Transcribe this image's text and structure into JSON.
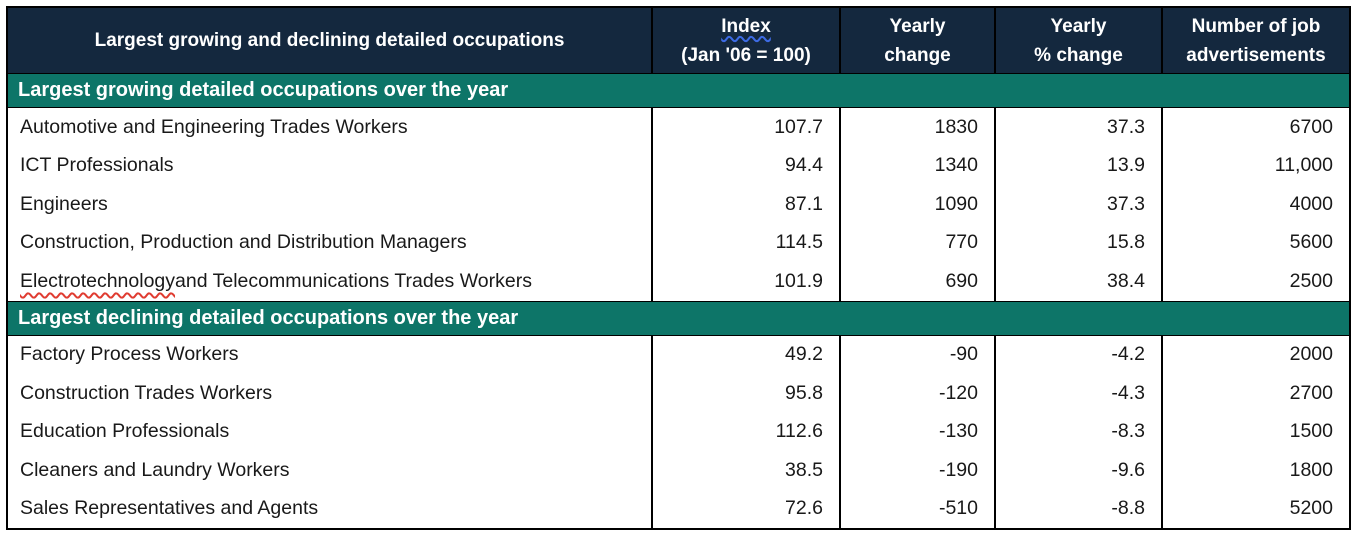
{
  "colors": {
    "header_bg": "#14283E",
    "section_bg": "#0D7568",
    "border": "#000000",
    "header_text": "#FFFFFF",
    "body_text": "#191919",
    "spellcheck_red": "#E03C31",
    "spellcheck_blue": "#3D6BE5"
  },
  "header": {
    "title": "Largest growing and declining detailed occupations",
    "columns": [
      {
        "line1": "Index",
        "line2": "(Jan '06 = 100)"
      },
      {
        "line1": "Yearly",
        "line2": "change"
      },
      {
        "line1": "Yearly",
        "line2": "% change"
      },
      {
        "line1": "Number of job",
        "line2": "advertisements"
      }
    ]
  },
  "sections": [
    {
      "label": "Largest growing detailed occupations over the year",
      "rows": [
        {
          "occupation": "Automotive and Engineering Trades Workers",
          "index": "107.7",
          "yearly_change": "1830",
          "yearly_pct_change": "37.3",
          "job_ads": "6700"
        },
        {
          "occupation": "ICT Professionals",
          "index": "94.4",
          "yearly_change": "1340",
          "yearly_pct_change": "13.9",
          "job_ads": "11,000"
        },
        {
          "occupation": "Engineers",
          "index": "87.1",
          "yearly_change": "1090",
          "yearly_pct_change": "37.3",
          "job_ads": "4000"
        },
        {
          "occupation": "Construction, Production and Distribution Managers",
          "index": "114.5",
          "yearly_change": "770",
          "yearly_pct_change": "15.8",
          "job_ads": "5600"
        },
        {
          "occupation_flagged": "Electrotechnology",
          "occupation_rest": " and Telecommunications Trades Workers",
          "index": "101.9",
          "yearly_change": "690",
          "yearly_pct_change": "38.4",
          "job_ads": "2500"
        }
      ]
    },
    {
      "label": "Largest declining detailed occupations over the year",
      "rows": [
        {
          "occupation": "Factory Process Workers",
          "index": "49.2",
          "yearly_change": "-90",
          "yearly_pct_change": "-4.2",
          "job_ads": "2000"
        },
        {
          "occupation": "Construction Trades Workers",
          "index": "95.8",
          "yearly_change": "-120",
          "yearly_pct_change": "-4.3",
          "job_ads": "2700"
        },
        {
          "occupation": "Education Professionals",
          "index": "112.6",
          "yearly_change": "-130",
          "yearly_pct_change": "-8.3",
          "job_ads": "1500"
        },
        {
          "occupation": "Cleaners and Laundry Workers",
          "index": "38.5",
          "yearly_change": "-190",
          "yearly_pct_change": "-9.6",
          "job_ads": "1800"
        },
        {
          "occupation": "Sales Representatives and Agents",
          "index": "72.6",
          "yearly_change": "-510",
          "yearly_pct_change": "-8.8",
          "job_ads": "5200"
        }
      ]
    }
  ]
}
